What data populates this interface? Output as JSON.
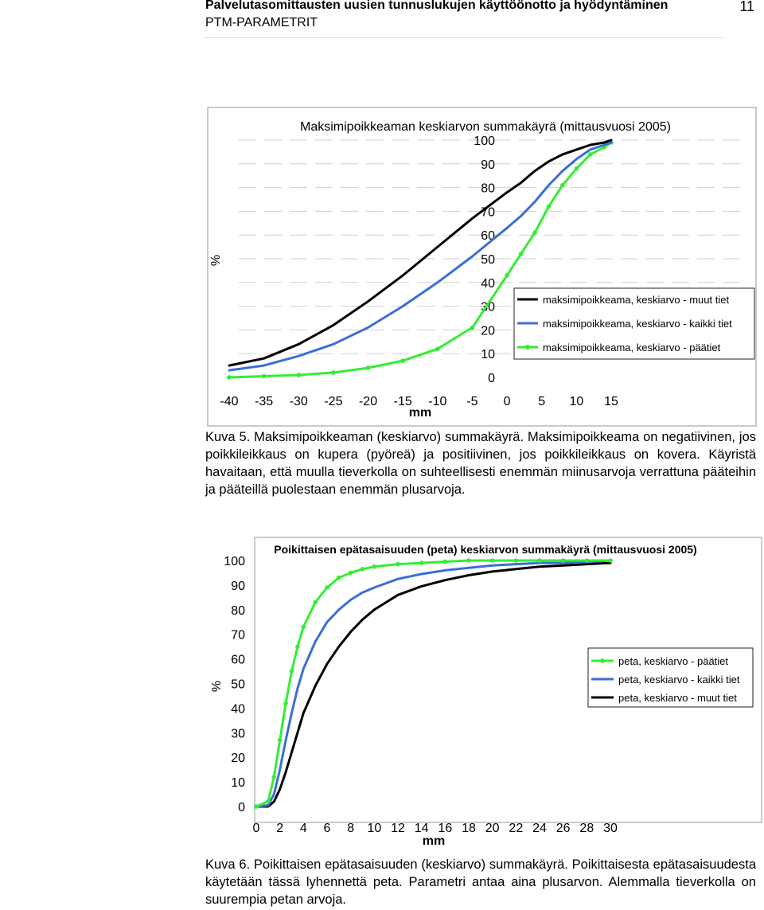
{
  "header": {
    "title": "Palvelutasomittausten uusien tunnuslukujen käyttöönotto ja hyödyntäminen",
    "subtitle": "PTM-PARAMETRIT",
    "page_number": "11"
  },
  "figure5": {
    "caption": "Kuva 5. Maksimipoikkeaman (keskiarvo) summakäyrä. Maksimipoikkeama on negatiivinen, jos poikkileikkaus on kupera (pyöreä) ja positiivinen, jos poikkileikkaus on kovera. Käyristä havaitaan, että muulla tieverkolla on suhteellisesti enemmän miinusarvoja verrattuna pääteihin ja pääteillä puolestaan enemmän plusarvoja."
  },
  "figure6": {
    "caption": "Kuva 6. Poikittaisen epätasaisuuden (keskiarvo) summakäyrä. Poikittaisesta epätasaisuudesta käytetään tässä lyhennettä peta. Parametri antaa aina plusarvon. Alemmalla tieverkolla on suurempia petan arvoja."
  },
  "chart_data": [
    {
      "type": "line",
      "title": "Maksimipoikkeaman keskiarvon summakäyrä (mittausvuosi 2005)",
      "xlabel": "mm",
      "ylabel": "%",
      "xlim": [
        -40,
        15
      ],
      "ylim": [
        0,
        100
      ],
      "x_ticks": [
        "-40",
        "-35",
        "-30",
        "-25",
        "-20",
        "-15",
        "-10",
        "-5",
        "0",
        "5",
        "10",
        "15"
      ],
      "y_ticks": [
        "0",
        "10",
        "20",
        "30",
        "40",
        "50",
        "60",
        "70",
        "80",
        "90",
        "100"
      ],
      "grid": true,
      "legend_position": "right",
      "x": [
        -40,
        -35,
        -30,
        -25,
        -20,
        -15,
        -10,
        -5,
        0,
        2,
        4,
        6,
        8,
        10,
        12,
        14,
        15
      ],
      "series": [
        {
          "name": "maksimipoikkeama, keskiarvo - muut tiet",
          "color": "#000000",
          "marker": "none",
          "values": [
            5,
            8,
            14,
            22,
            32,
            43,
            55,
            67,
            78,
            82,
            87,
            91,
            94,
            96,
            98,
            99,
            100
          ]
        },
        {
          "name": "maksimipoikkeama, keskiarvo - kaikki tiet",
          "color": "#3b6fd6",
          "marker": "none",
          "values": [
            3,
            5,
            9,
            14,
            21,
            30,
            40,
            51,
            63,
            68,
            74,
            81,
            87,
            92,
            96,
            98,
            99
          ]
        },
        {
          "name": "maksimipoikkeama, keskiarvo - päätiet",
          "color": "#33ee33",
          "marker": "dot",
          "values": [
            0,
            0.5,
            1,
            2,
            4,
            7,
            12,
            21,
            43,
            52,
            61,
            72,
            81,
            88,
            94,
            97,
            99
          ]
        }
      ]
    },
    {
      "type": "line",
      "title": "Poikittaisen epätasaisuuden (peta) keskiarvon summakäyrä (mittausvuosi 2005)",
      "xlabel": "mm",
      "ylabel": "%",
      "xlim": [
        0,
        30
      ],
      "ylim": [
        0,
        100
      ],
      "x_ticks": [
        "0",
        "2",
        "4",
        "6",
        "8",
        "10",
        "12",
        "14",
        "16",
        "18",
        "20",
        "22",
        "24",
        "26",
        "28",
        "30"
      ],
      "y_ticks": [
        "0",
        "10",
        "20",
        "30",
        "40",
        "50",
        "60",
        "70",
        "80",
        "90",
        "100"
      ],
      "grid": false,
      "legend_position": "right",
      "x": [
        0,
        1,
        1.5,
        2,
        2.5,
        3,
        3.5,
        4,
        5,
        6,
        7,
        8,
        9,
        10,
        12,
        14,
        16,
        18,
        20,
        22,
        24,
        26,
        28,
        30
      ],
      "series": [
        {
          "name": "peta, keskiarvo - päätiet",
          "color": "#33ee33",
          "marker": "dot",
          "values": [
            0,
            2,
            12,
            27,
            42,
            55,
            65,
            73,
            83,
            89,
            93,
            95,
            96.5,
            97.5,
            98.5,
            99,
            99.5,
            100,
            100,
            100,
            100,
            100,
            100,
            100
          ]
        },
        {
          "name": "peta, keskiarvo - kaikki tiet",
          "color": "#3b6fd6",
          "marker": "none",
          "values": [
            0,
            0.5,
            5,
            15,
            27,
            38,
            48,
            56,
            67,
            75,
            80,
            84,
            87,
            89,
            92.5,
            94.5,
            96,
            97,
            98,
            98.5,
            99,
            99,
            99.5,
            100
          ]
        },
        {
          "name": "peta, keskiarvo - muut tiet",
          "color": "#000000",
          "marker": "none",
          "values": [
            0,
            0,
            2,
            7,
            14,
            22,
            30,
            38,
            49,
            58,
            65,
            71,
            76,
            80,
            86,
            89.5,
            92,
            94,
            95.5,
            96.5,
            97.5,
            98,
            98.5,
            99
          ]
        }
      ]
    }
  ]
}
